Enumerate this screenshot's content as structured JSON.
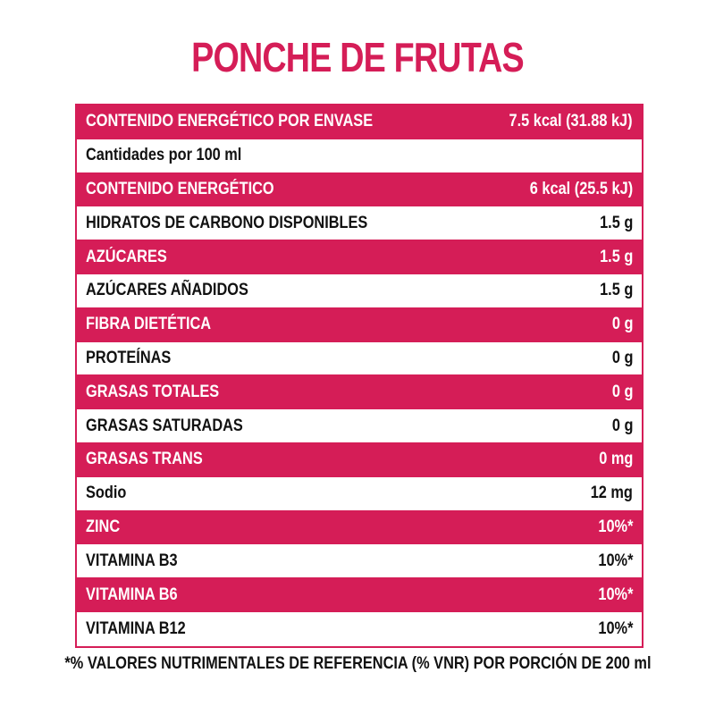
{
  "title": "PONCHE DE FRUTAS",
  "colors": {
    "accent": "#d51d57",
    "text": "#111111",
    "background": "#ffffff"
  },
  "rows": [
    {
      "label": "CONTENIDO ENERGÉTICO POR ENVASE",
      "value": "7.5 kcal (31.88 kJ)",
      "style": "pink"
    },
    {
      "label": "Cantidades por 100 ml",
      "value": "",
      "style": "plain"
    },
    {
      "label": "CONTENIDO ENERGÉTICO",
      "value": "6 kcal (25.5 kJ)",
      "style": "pink"
    },
    {
      "label": "HIDRATOS DE CARBONO DISPONIBLES",
      "value": "1.5 g",
      "style": "plain"
    },
    {
      "label": "AZÚCARES",
      "value": "1.5 g",
      "style": "pink"
    },
    {
      "label": "AZÚCARES AÑADIDOS",
      "value": "1.5 g",
      "style": "plain"
    },
    {
      "label": "FIBRA DIETÉTICA",
      "value": "0 g",
      "style": "pink"
    },
    {
      "label": "PROTEÍNAS",
      "value": "0 g",
      "style": "plain"
    },
    {
      "label": "GRASAS TOTALES",
      "value": "0 g",
      "style": "pink"
    },
    {
      "label": "GRASAS SATURADAS",
      "value": "0 g",
      "style": "plain"
    },
    {
      "label": "GRASAS TRANS",
      "value": "0 mg",
      "style": "pink"
    },
    {
      "label": "Sodio",
      "value": "12 mg",
      "style": "plain"
    },
    {
      "label": "ZINC",
      "value": "10%*",
      "style": "pink"
    },
    {
      "label": "VITAMINA B3",
      "value": "10%*",
      "style": "plain"
    },
    {
      "label": "VITAMINA B6",
      "value": "10%*",
      "style": "pink"
    },
    {
      "label": "VITAMINA B12",
      "value": "10%*",
      "style": "plain"
    }
  ],
  "footnote": "*% VALORES NUTRIMENTALES DE REFERENCIA (% VNR) POR PORCIÓN DE 200 ml"
}
